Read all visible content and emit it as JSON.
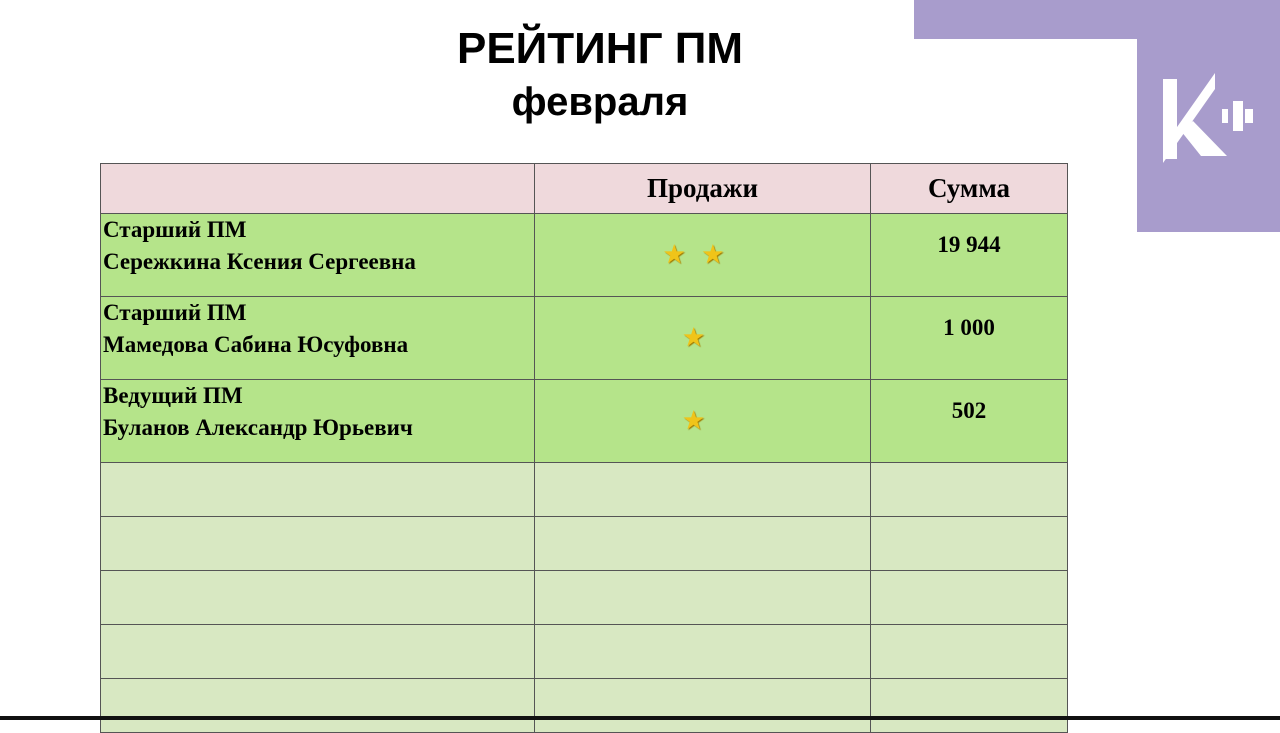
{
  "title": "РЕЙТИНГ ПМ",
  "subtitle": "февраля",
  "logo": {
    "text": "K+",
    "color": "#a89ccc"
  },
  "table": {
    "headers": [
      "",
      "Продажи",
      "Сумма"
    ],
    "rows": [
      {
        "role": "Старший ПМ",
        "name": "Сережкина Ксения Сергеевна",
        "stars": 2,
        "stars_text": "★★",
        "sum": "19 944"
      },
      {
        "role": "Старший ПМ",
        "name": "Мамедова Сабина Юсуфовна",
        "stars": 1,
        "stars_text": "★",
        "sum": "1 000"
      },
      {
        "role": "Ведущий ПМ",
        "name": "Буланов Александр Юрьевич",
        "stars": 1,
        "stars_text": "★",
        "sum": "502"
      }
    ],
    "empty_rows": 5
  }
}
